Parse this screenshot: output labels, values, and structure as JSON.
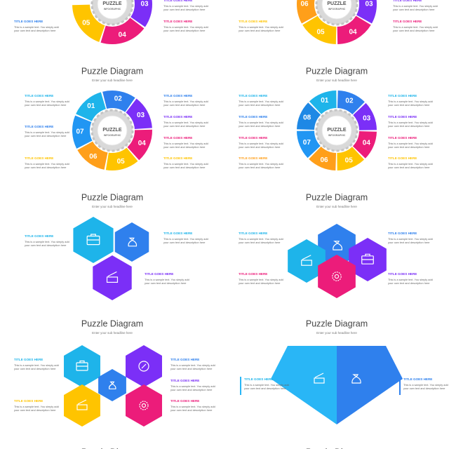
{
  "panels": [
    {
      "center": [
        "PUZZLE",
        "INFOGRAPHIC"
      ],
      "pieces": [
        "03",
        "04",
        "05"
      ],
      "items": [
        {
          "heading": "TITLE GOES HERE",
          "text": "This is a sample text. You simply add your own text and description here"
        },
        {
          "heading": "TITLE GOES HERE",
          "text": "This is a sample text. You simply add your own text and description here"
        },
        {
          "heading": "TITLE GOES HERE",
          "text": "This is a sample text. You simply add your own text and description here"
        }
      ]
    },
    {
      "center": [
        "PUZZLE",
        "INFOGRAPHIC"
      ],
      "pieces": [
        "03",
        "04",
        "05",
        "06"
      ],
      "items": [
        {
          "heading": "TITLE GOES HERE",
          "text": "This is a sample text. You simply add your own text and description here"
        },
        {
          "heading": "TITLE GOES HERE",
          "text": "This is a sample text. You simply add your own text and description here"
        },
        {
          "heading": "TITLE GOES HERE",
          "text": "This is a sample text. You simply add your own text and description here"
        }
      ]
    },
    {
      "title": "Puzzle Diagram",
      "subtitle": "Enter your sub headline here",
      "center": [
        "PUZZLE",
        "INFOGRAPHIC"
      ],
      "pieces": [
        "01",
        "02",
        "03",
        "04",
        "05",
        "06",
        "07"
      ],
      "items": [
        {
          "heading": "TITLE GOES HERE",
          "text": "This is a sample text. You simply add your own text and description here"
        },
        {
          "heading": "TITLE GOES HERE",
          "text": "This is a sample text. You simply add your own text and description here"
        },
        {
          "heading": "TITLE GOES HERE",
          "text": "This is a sample text. You simply add your own text and description here"
        },
        {
          "heading": "TITLE GOES HERE",
          "text": "This is a sample text. You simply add your own text and description here"
        },
        {
          "heading": "TITLE GOES HERE",
          "text": "This is a sample text. You simply add your own text and description here"
        },
        {
          "heading": "TITLE GOES HERE",
          "text": "This is a sample text. You simply add your own text and description here"
        },
        {
          "heading": "TITLE GOES HERE",
          "text": "This is a sample text. You simply add your own text and description here"
        }
      ]
    },
    {
      "title": "Puzzle Diagram",
      "subtitle": "Enter your sub headline here",
      "center": [
        "PUZZLE",
        "INFOGRAPHIC"
      ],
      "pieces": [
        "01",
        "02",
        "03",
        "04",
        "05",
        "06",
        "07",
        "08"
      ],
      "items": [
        {
          "heading": "TITLE GOES HERE",
          "text": "This is a sample text. You simply add your own text and description here"
        },
        {
          "heading": "TITLE GOES HERE",
          "text": "This is a sample text. You simply add your own text and description here"
        },
        {
          "heading": "TITLE GOES HERE",
          "text": "This is a sample text. You simply add your own text and description here"
        },
        {
          "heading": "TITLE GOES HERE",
          "text": "This is a sample text. You simply add your own text and description here"
        },
        {
          "heading": "TITLE GOES HERE",
          "text": "This is a sample text. You simply add your own text and description here"
        },
        {
          "heading": "TITLE GOES HERE",
          "text": "This is a sample text. You simply add your own text and description here"
        },
        {
          "heading": "TITLE GOES HERE",
          "text": "This is a sample text. You simply add your own text and description here"
        },
        {
          "heading": "TITLE GOES HERE",
          "text": "This is a sample text. You simply add your own text and description here"
        }
      ]
    },
    {
      "title": "Puzzle Diagram",
      "subtitle": "Enter your sub headline here",
      "items": [
        {
          "heading": "TITLE GOES HERE",
          "text": "This is a sample text. You simply add your own text and description here"
        },
        {
          "heading": "TITLE GOES HERE",
          "text": "This is a sample text. You simply add your own text and description here"
        },
        {
          "heading": "TITLE GOES HERE",
          "text": "This is a sample text. You simply add your own text and description here"
        }
      ]
    },
    {
      "title": "Puzzle Diagram",
      "subtitle": "Enter your sub headline here",
      "items": [
        {
          "heading": "TITLE GOES HERE",
          "text": "This is a sample text. You simply add your own text and description here"
        },
        {
          "heading": "TITLE GOES HERE",
          "text": "This is a sample text. You simply add your own text and description here"
        },
        {
          "heading": "TITLE GOES HERE",
          "text": "This is a sample text. You simply add your own text and description here"
        },
        {
          "heading": "TITLE GOES HERE",
          "text": "This is a sample text. You simply add your own text and description here"
        }
      ]
    },
    {
      "title": "Puzzle Diagram",
      "subtitle": "Enter your sub headline here",
      "items": [
        {
          "heading": "TITLE GOES HERE",
          "text": "This is a sample text. You simply add your own text and description here"
        },
        {
          "heading": "TITLE GOES HERE",
          "text": "This is a sample text. You simply add your own text and description here"
        },
        {
          "heading": "TITLE GOES HERE",
          "text": "This is a sample text. You simply add your own text and description here"
        },
        {
          "heading": "TITLE GOES HERE",
          "text": "This is a sample text. You simply add your own text and description here"
        },
        {
          "heading": "TITLE GOES HERE",
          "text": "This is a sample text. You simply add your own text and description here"
        }
      ]
    },
    {
      "title": "Puzzle Diagram",
      "subtitle": "Enter your sub headline here",
      "items": [
        {
          "heading": "TITLE GOES HERE",
          "text": "This is a sample text. You simply add your own text and description here"
        },
        {
          "heading": "TITLE GOES HERE",
          "text": "This is a sample text. You simply add your own text and description here"
        }
      ]
    },
    {
      "title": "Puzzle Diagram"
    },
    {
      "title": "Puzzle Diagram"
    }
  ]
}
